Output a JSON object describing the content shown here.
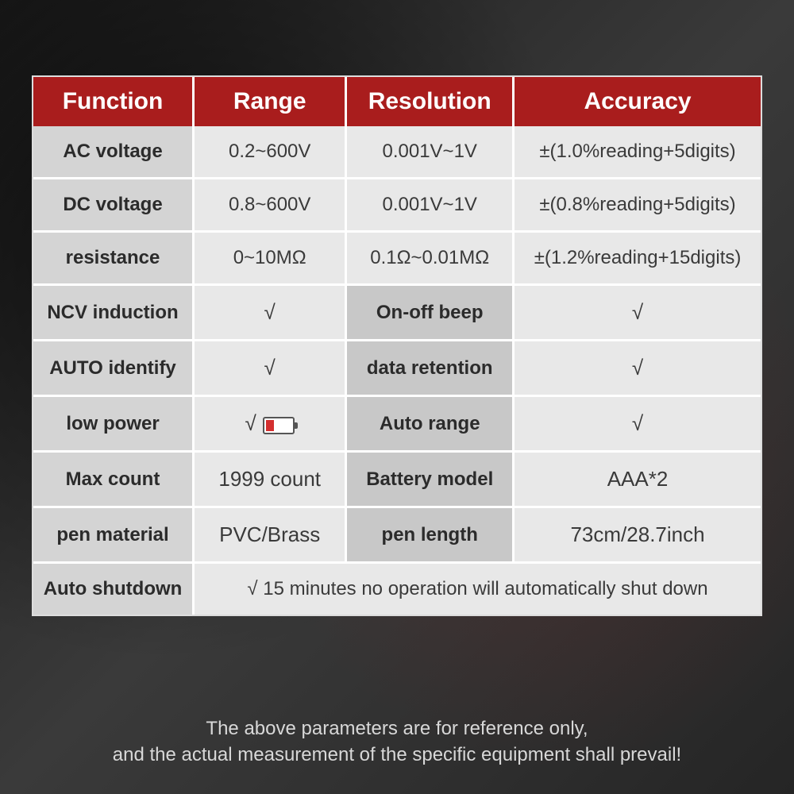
{
  "table": {
    "headers": [
      "Function",
      "Range",
      "Resolution",
      "Accuracy"
    ],
    "col_widths": [
      "22%",
      "21%",
      "23%",
      "34%"
    ],
    "header_bg": "#a91d1d",
    "header_color": "#ffffff",
    "label_bg": "#d4d4d4",
    "alt_label_bg": "#c8c8c8",
    "cell_bg": "#e8e8e8",
    "rows4": [
      {
        "label": "AC voltage",
        "range": "0.2~600V",
        "res": "0.001V~1V",
        "acc": "±(1.0%reading+5digits)"
      },
      {
        "label": "DC voltage",
        "range": "0.8~600V",
        "res": "0.001V~1V",
        "acc": "±(0.8%reading+5digits)"
      },
      {
        "label": "resistance",
        "range": "0~10MΩ",
        "res": "0.1Ω~0.01MΩ",
        "acc": "±(1.2%reading+15digits)"
      }
    ],
    "rows2x2": [
      {
        "l1": "NCV induction",
        "v1": "√",
        "l2": "On-off beep",
        "v2": "√"
      },
      {
        "l1": "AUTO identify",
        "v1": "√",
        "l2": "data retention",
        "v2": "√"
      },
      {
        "l1": "low power",
        "v1": "√",
        "l2": "Auto range",
        "v2": "√",
        "battery": true
      },
      {
        "l1": "Max count",
        "v1": "1999 count",
        "l2": "Battery model",
        "v2": "AAA*2"
      },
      {
        "l1": "pen material",
        "v1": "PVC/Brass",
        "l2": "pen length",
        "v2": "73cm/28.7inch"
      }
    ],
    "final_row": {
      "label": "Auto shutdown",
      "value": "√ 15 minutes no operation will automatically shut down"
    }
  },
  "disclaimer": {
    "line1": "The above parameters are for reference only,",
    "line2": "and the actual measurement of the specific equipment shall prevail!"
  },
  "colors": {
    "page_bg": "#2a2a2a",
    "accent_red": "#a91d1d",
    "battery_fill": "#d32f2f"
  }
}
